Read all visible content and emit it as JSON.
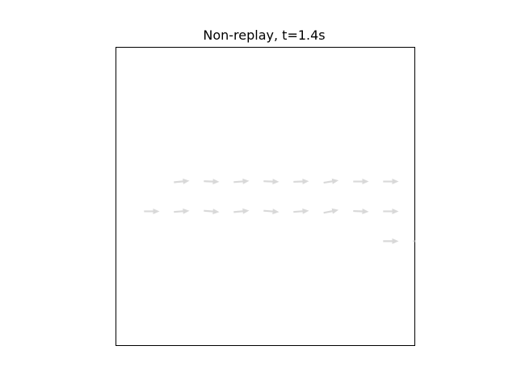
{
  "chart_data": {
    "type": "quiver",
    "title": "Non-replay, t=1.4s",
    "xlabel": "",
    "ylabel": "",
    "xlim": [
      0,
      10
    ],
    "ylim": [
      0,
      10
    ],
    "ticks_visible": false,
    "grid": false,
    "arrow_color": "#d9d9d9",
    "arrows": [
      {
        "x": 1.2,
        "y": 4.5,
        "u": 0.52,
        "v": 0.0
      },
      {
        "x": 2.2,
        "y": 4.5,
        "u": 0.52,
        "v": 0.04
      },
      {
        "x": 3.2,
        "y": 4.5,
        "u": 0.52,
        "v": -0.04
      },
      {
        "x": 4.2,
        "y": 4.5,
        "u": 0.52,
        "v": 0.05
      },
      {
        "x": 5.2,
        "y": 4.5,
        "u": 0.52,
        "v": -0.04
      },
      {
        "x": 6.2,
        "y": 4.5,
        "u": 0.52,
        "v": 0.04
      },
      {
        "x": 7.2,
        "y": 4.5,
        "u": 0.5,
        "v": 0.1
      },
      {
        "x": 8.2,
        "y": 4.5,
        "u": 0.52,
        "v": -0.02
      },
      {
        "x": 9.2,
        "y": 4.5,
        "u": 0.52,
        "v": 0.0
      },
      {
        "x": 2.2,
        "y": 5.5,
        "u": 0.52,
        "v": 0.05
      },
      {
        "x": 3.2,
        "y": 5.5,
        "u": 0.52,
        "v": -0.02
      },
      {
        "x": 4.2,
        "y": 5.5,
        "u": 0.52,
        "v": 0.04
      },
      {
        "x": 5.2,
        "y": 5.5,
        "u": 0.52,
        "v": -0.02
      },
      {
        "x": 6.2,
        "y": 5.5,
        "u": 0.52,
        "v": 0.02
      },
      {
        "x": 7.2,
        "y": 5.5,
        "u": 0.5,
        "v": 0.08
      },
      {
        "x": 8.2,
        "y": 5.5,
        "u": 0.52,
        "v": 0.0
      },
      {
        "x": 9.2,
        "y": 5.5,
        "u": 0.52,
        "v": 0.0
      },
      {
        "x": 9.2,
        "y": 3.5,
        "u": 0.52,
        "v": 0.0
      },
      {
        "x": 10.2,
        "y": 3.5,
        "u": 0.52,
        "v": 0.0
      }
    ]
  }
}
